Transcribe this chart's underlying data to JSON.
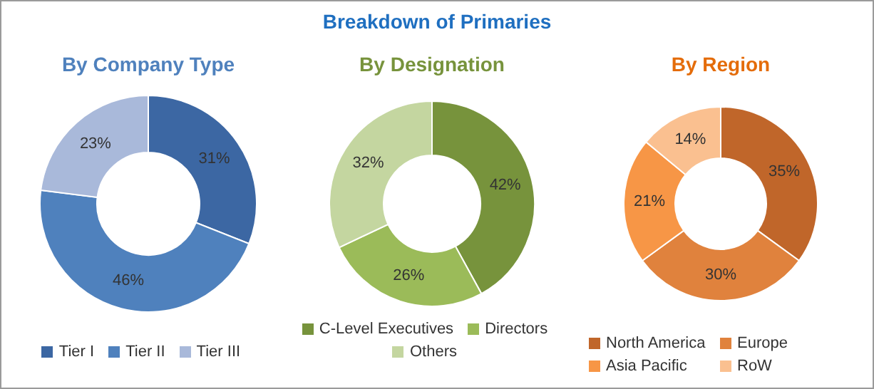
{
  "chart_data": [
    {
      "type": "donut",
      "title": "By Company Type",
      "annotations": [
        "Breakdown of Primaries"
      ],
      "categories": [
        "Tier I",
        "Tier II",
        "Tier III"
      ],
      "values": [
        31,
        46,
        23
      ],
      "value_labels": [
        "31%",
        "46%",
        "23%"
      ],
      "colors": [
        "#3c67a3",
        "#4f81bd",
        "#a9b9da"
      ],
      "legend": "bottom"
    },
    {
      "type": "donut",
      "title": "By Designation",
      "categories": [
        "C-Level Executives",
        "Directors",
        "Others"
      ],
      "values": [
        42,
        26,
        32
      ],
      "value_labels": [
        "42%",
        "26%",
        "32%"
      ],
      "colors": [
        "#77933c",
        "#9bbb59",
        "#c4d6a0"
      ],
      "legend": "bottom"
    },
    {
      "type": "donut",
      "title": "By Region",
      "categories": [
        "North America",
        "Europe",
        "Asia Pacific",
        "RoW"
      ],
      "values": [
        35,
        30,
        21,
        14
      ],
      "value_labels": [
        "35%",
        "30%",
        "21%",
        "14%"
      ],
      "colors": [
        "#c0662a",
        "#e0823d",
        "#f79646",
        "#fac090"
      ],
      "legend": "bottom"
    }
  ]
}
